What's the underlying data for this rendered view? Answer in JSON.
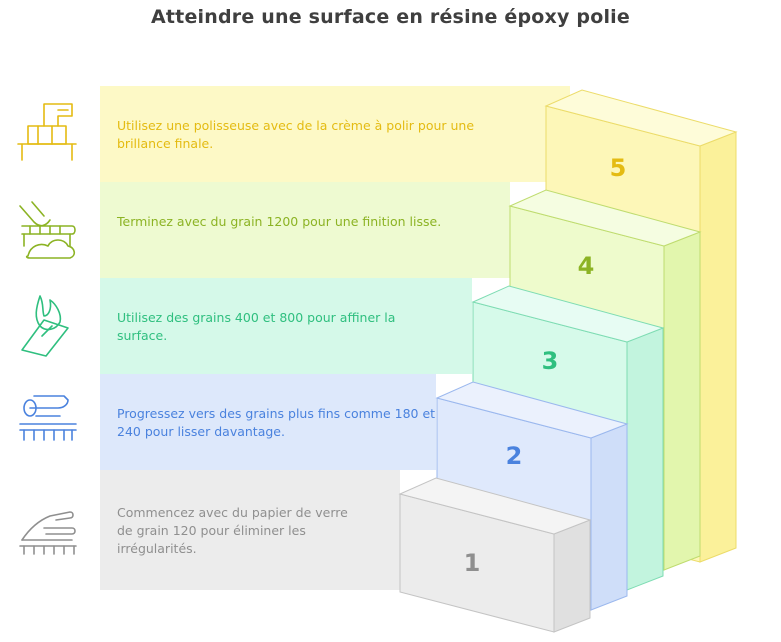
{
  "title": "Atteindre une surface en résine époxy polie",
  "steps": [
    {
      "number": "1",
      "text": "Commencez avec du papier de verre de grain 120 pour éliminer les irrégularités.",
      "icon": "sanding-hand-icon",
      "color": "#8f8f8f",
      "band": "#ececec"
    },
    {
      "number": "2",
      "text": "Progressez vers des grains plus fins comme 180 et 240 pour lisser davantage.",
      "icon": "sanding-machine-icon",
      "color": "#4a82de",
      "band": "#dde8fb"
    },
    {
      "number": "3",
      "text": "Utilisez des grains 400 et 800 pour affiner la surface.",
      "icon": "sanding-block-icon",
      "color": "#2fbf7f",
      "band": "#d5f9e9"
    },
    {
      "number": "4",
      "text": "Terminez avec du grain 1200 pour une finition lisse.",
      "icon": "finishing-hands-icon",
      "color": "#8cb324",
      "band": "#eefad1"
    },
    {
      "number": "5",
      "text": "Utilisez une polisseuse avec de la crème à polir pour une brillance finale.",
      "icon": "polisher-icon",
      "color": "#e4bb12",
      "band": "#fdf9c6"
    }
  ]
}
